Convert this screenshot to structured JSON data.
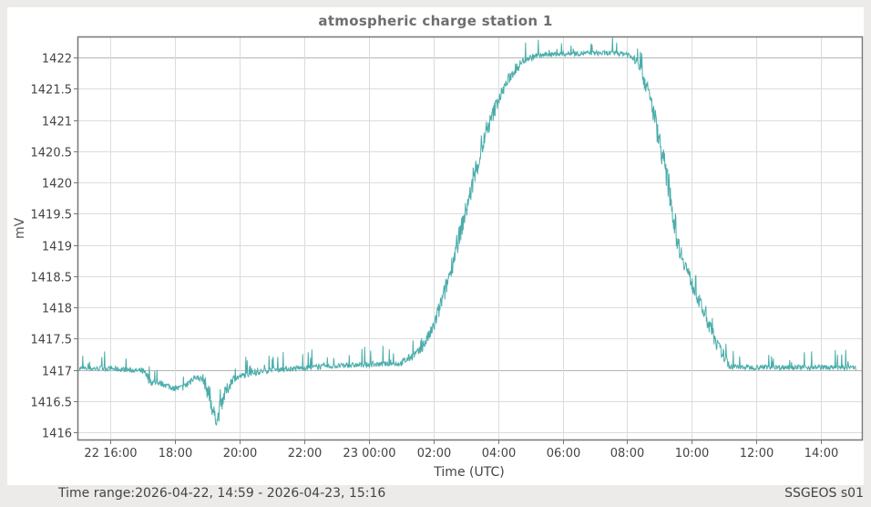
{
  "window": {
    "footer_time_range": "Time range:2026-04-22, 14:59 - 2026-04-23, 15:16",
    "footer_station": "SSGEOS s01"
  },
  "colors": {
    "series": "#4aadaa",
    "grid": "#dcdcdc",
    "axis": "#777777",
    "baseline": "#b5b5b5"
  },
  "chart_data": {
    "type": "line",
    "title": "atmospheric charge station 1",
    "xlabel": "Time (UTC)",
    "ylabel": "mV",
    "ylim": [
      1415.9,
      1422.35
    ],
    "xlim_hours": [
      0,
      24.28
    ],
    "x_origin": "2026-04-22 14:59",
    "grid": true,
    "legend": "none",
    "yticks": [
      1416,
      1416.5,
      1417,
      1417.5,
      1418,
      1418.5,
      1419,
      1419.5,
      1420,
      1420.5,
      1421,
      1421.5,
      1422
    ],
    "ytick_labels": [
      "1416",
      "1416.5",
      "1417",
      "1417.5",
      "1418",
      "1418.5",
      "1419",
      "1419.5",
      "1420",
      "1420.5",
      "1421",
      "1421.5",
      "1422"
    ],
    "xticks_hours": [
      1.017,
      3.017,
      5.017,
      7.017,
      9.017,
      11.017,
      13.017,
      15.017,
      17.017,
      19.017,
      21.017,
      23.017
    ],
    "xtick_labels": [
      "22 16:00",
      "18:00",
      "20:00",
      "22:00",
      "23 00:00",
      "02:00",
      "04:00",
      "06:00",
      "08:00",
      "10:00",
      "12:00",
      "14:00"
    ],
    "series": [
      {
        "name": "atmospheric charge station 1",
        "x_hours": [
          0.05,
          1.0,
          2.0,
          2.3,
          2.6,
          3.0,
          3.3,
          3.6,
          3.9,
          4.1,
          4.3,
          4.5,
          4.8,
          5.2,
          6.0,
          7.0,
          8.0,
          9.0,
          10.0,
          10.6,
          11.0,
          11.4,
          11.8,
          12.2,
          12.6,
          13.0,
          13.4,
          13.8,
          14.2,
          14.7,
          15.2,
          16.0,
          17.0,
          17.4,
          17.8,
          18.2,
          18.6,
          19.0,
          19.4,
          19.8,
          20.2,
          20.6,
          21.0,
          22.0,
          23.0,
          24.1
        ],
        "values": [
          1417.02,
          1417.02,
          1416.98,
          1416.8,
          1416.78,
          1416.7,
          1416.72,
          1416.88,
          1416.85,
          1416.55,
          1416.15,
          1416.55,
          1416.85,
          1416.92,
          1417.0,
          1417.03,
          1417.06,
          1417.08,
          1417.1,
          1417.3,
          1417.65,
          1418.3,
          1419.1,
          1419.9,
          1420.7,
          1421.3,
          1421.7,
          1421.95,
          1422.03,
          1422.05,
          1422.06,
          1422.07,
          1422.06,
          1421.9,
          1421.2,
          1420.2,
          1419.0,
          1418.4,
          1417.9,
          1417.4,
          1417.05,
          1417.04,
          1417.04,
          1417.04,
          1417.04,
          1417.03
        ],
        "noise_mv": 0.08,
        "spike_mv": 0.3
      }
    ]
  }
}
